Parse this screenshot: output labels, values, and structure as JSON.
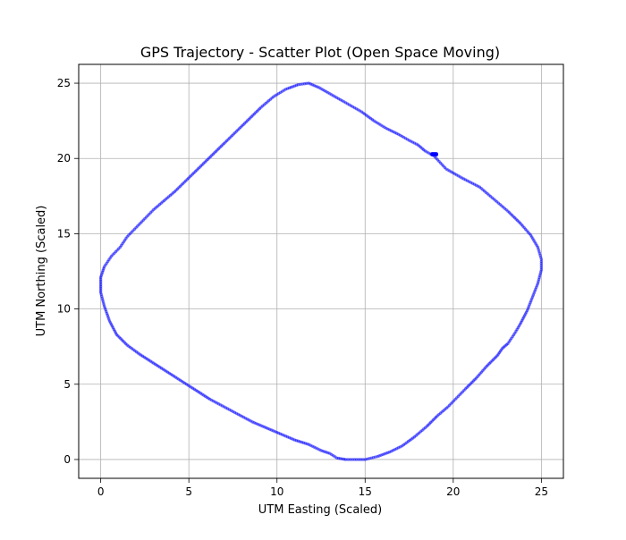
{
  "chart_data": {
    "type": "scatter",
    "title": "GPS Trajectory - Scatter Plot (Open Space Moving)",
    "xlabel": "UTM Easting (Scaled)",
    "ylabel": "UTM Northing (Scaled)",
    "xlim": [
      -1.25,
      26.25
    ],
    "ylim": [
      -1.25,
      26.25
    ],
    "x_ticks": [
      0,
      5,
      10,
      15,
      20,
      25
    ],
    "y_ticks": [
      0,
      5,
      10,
      15,
      20,
      25
    ],
    "x_tick_labels": [
      "0",
      "5",
      "10",
      "15",
      "20",
      "25"
    ],
    "y_tick_labels": [
      "0",
      "5",
      "10",
      "15",
      "20",
      "25"
    ],
    "grid": true,
    "marker_color": "#0000ff",
    "series": [
      {
        "points_x": [
          18.8,
          19.6,
          20.5,
          21.5,
          22.3,
          23.1,
          23.8,
          24.4,
          24.8,
          25.0,
          25.0,
          24.8,
          24.5,
          24.2,
          23.8,
          23.5,
          23.1,
          22.8,
          22.5,
          21.9,
          21.3,
          20.7,
          20.2,
          19.7,
          19.1,
          18.5,
          17.8,
          17.1,
          16.4,
          15.7,
          15.0,
          14.4,
          13.9,
          13.4,
          13.0,
          12.5,
          11.8,
          11.0,
          10.2,
          9.4,
          8.6,
          7.8,
          7.0,
          6.2,
          5.4,
          4.6,
          3.8,
          3.0,
          2.2,
          1.5,
          0.9,
          0.5,
          0.2,
          0.0,
          0.0,
          0.2,
          0.6,
          1.1,
          1.5,
          2.0,
          2.5,
          3.0,
          3.6,
          4.2,
          4.9,
          5.6,
          6.3,
          7.0,
          7.7,
          8.4,
          9.1,
          9.8,
          10.5,
          11.2,
          11.8,
          12.4,
          13.0,
          13.6,
          14.2,
          14.8,
          15.5,
          16.2,
          16.9,
          17.5,
          18.0,
          18.4,
          18.7,
          18.8
        ],
        "points_y": [
          20.3,
          19.3,
          18.7,
          18.1,
          17.3,
          16.5,
          15.7,
          14.9,
          14.1,
          13.3,
          12.6,
          11.7,
          10.8,
          9.9,
          9.0,
          8.4,
          7.7,
          7.4,
          6.9,
          6.2,
          5.4,
          4.7,
          4.1,
          3.5,
          2.9,
          2.2,
          1.5,
          0.9,
          0.5,
          0.2,
          0.0,
          0.0,
          0.0,
          0.1,
          0.4,
          0.6,
          1.0,
          1.3,
          1.7,
          2.1,
          2.5,
          3.0,
          3.5,
          4.0,
          4.6,
          5.2,
          5.8,
          6.4,
          7.0,
          7.6,
          8.3,
          9.2,
          10.2,
          11.1,
          12.1,
          12.8,
          13.5,
          14.1,
          14.8,
          15.4,
          16.0,
          16.6,
          17.2,
          17.8,
          18.6,
          19.4,
          20.2,
          21.0,
          21.8,
          22.6,
          23.4,
          24.1,
          24.6,
          24.9,
          25.0,
          24.7,
          24.3,
          23.9,
          23.5,
          23.1,
          22.5,
          22.0,
          21.6,
          21.2,
          20.9,
          20.5,
          20.3,
          20.3
        ]
      }
    ]
  }
}
